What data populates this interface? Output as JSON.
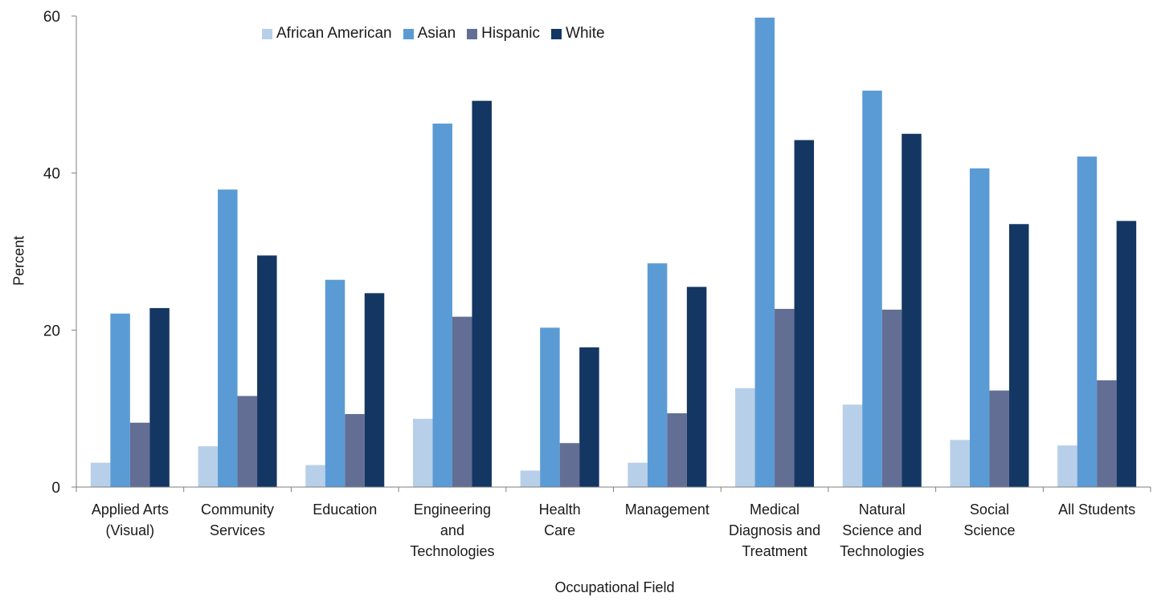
{
  "chart_data": {
    "type": "bar",
    "title": "",
    "xlabel": "Occupational Field",
    "ylabel": "Percent",
    "ylim": [
      0,
      60
    ],
    "yticks": [
      0,
      20,
      40,
      60
    ],
    "grid": false,
    "legend_position": "top",
    "categories": [
      [
        "Applied Arts",
        "(Visual)"
      ],
      [
        "Community",
        "Services"
      ],
      [
        "Education"
      ],
      [
        "Engineering",
        "and",
        "Technologies"
      ],
      [
        "Health",
        "Care"
      ],
      [
        "Management"
      ],
      [
        "Medical",
        "Diagnosis and",
        "Treatment"
      ],
      [
        "Natural",
        "Science and",
        "Technologies"
      ],
      [
        "Social",
        "Science"
      ],
      [
        "All Students"
      ]
    ],
    "series": [
      {
        "name": "African American",
        "color": "#b8cfe9",
        "values": [
          3.1,
          5.2,
          2.8,
          8.7,
          2.1,
          3.1,
          12.6,
          10.5,
          6.0,
          5.3
        ]
      },
      {
        "name": "Asian",
        "color": "#5b9bd5",
        "values": [
          22.1,
          37.9,
          26.4,
          46.3,
          20.3,
          28.5,
          59.8,
          50.5,
          40.6,
          42.1
        ]
      },
      {
        "name": "Hispanic",
        "color": "#636e94",
        "values": [
          8.2,
          11.6,
          9.3,
          21.7,
          5.6,
          9.4,
          22.7,
          22.6,
          12.3,
          13.6
        ]
      },
      {
        "name": "White",
        "color": "#143663",
        "values": [
          22.8,
          29.5,
          24.7,
          49.2,
          17.8,
          25.5,
          44.2,
          45.0,
          33.5,
          33.9
        ]
      }
    ]
  }
}
